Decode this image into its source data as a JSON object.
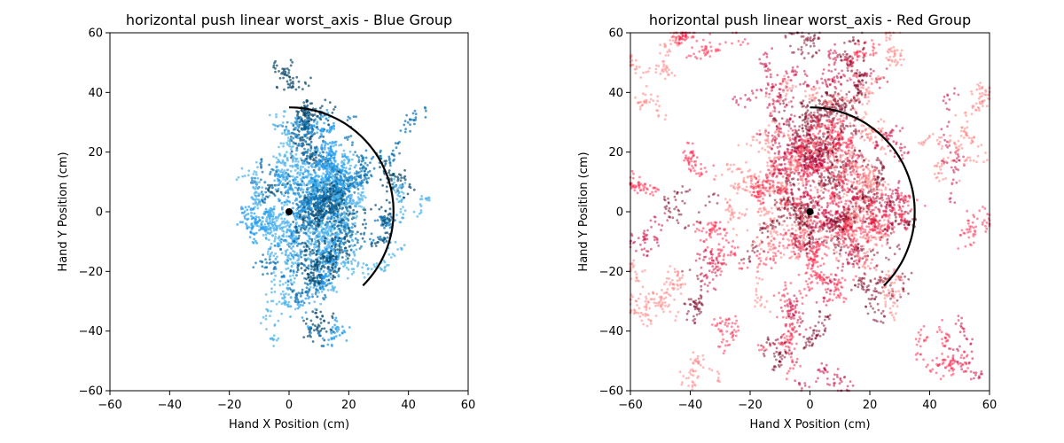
{
  "chart_data": [
    {
      "type": "scatter",
      "title": "horizontal push linear worst_axis - Blue Group",
      "xlabel": "Hand X Position (cm)",
      "ylabel": "Hand Y Position (cm)",
      "xlim": [
        -60,
        60
      ],
      "ylim": [
        -60,
        60
      ],
      "xticks": [
        "−60",
        "−40",
        "−20",
        "0",
        "20",
        "40",
        "60"
      ],
      "yticks": [
        "−60",
        "−40",
        "−20",
        "0",
        "20",
        "40",
        "60"
      ],
      "grid": false,
      "colors": [
        "#1f9bf0",
        "#0b74b5",
        "#0a4a6e",
        "#4fb3ea"
      ],
      "cloud": {
        "x_range": [
          -20,
          47
        ],
        "y_range": [
          -45,
          51
        ],
        "center": [
          10,
          0
        ]
      },
      "origin_point": {
        "x": 0,
        "y": 0
      },
      "arc": {
        "radius": 35,
        "start_angle_deg": 90,
        "end_angle_deg": -45
      }
    },
    {
      "type": "scatter",
      "title": "horizontal push linear worst_axis - Red Group",
      "xlabel": "Hand X Position (cm)",
      "ylabel": "Hand Y Position (cm)",
      "xlim": [
        -60,
        60
      ],
      "ylim": [
        -60,
        60
      ],
      "xticks": [
        "−60",
        "−40",
        "−20",
        "0",
        "20",
        "40",
        "60"
      ],
      "yticks": [
        "−60",
        "−40",
        "−20",
        "0",
        "20",
        "40",
        "60"
      ],
      "grid": false,
      "colors": [
        "#ff1f45",
        "#c8003a",
        "#7a0020",
        "#ff7a7a"
      ],
      "cloud": {
        "x_range": [
          -60,
          60
        ],
        "y_range": [
          -60,
          60
        ],
        "center": [
          10,
          10
        ]
      },
      "origin_point": {
        "x": 0,
        "y": 0
      },
      "arc": {
        "radius": 35,
        "start_angle_deg": 90,
        "end_angle_deg": -45
      }
    }
  ]
}
